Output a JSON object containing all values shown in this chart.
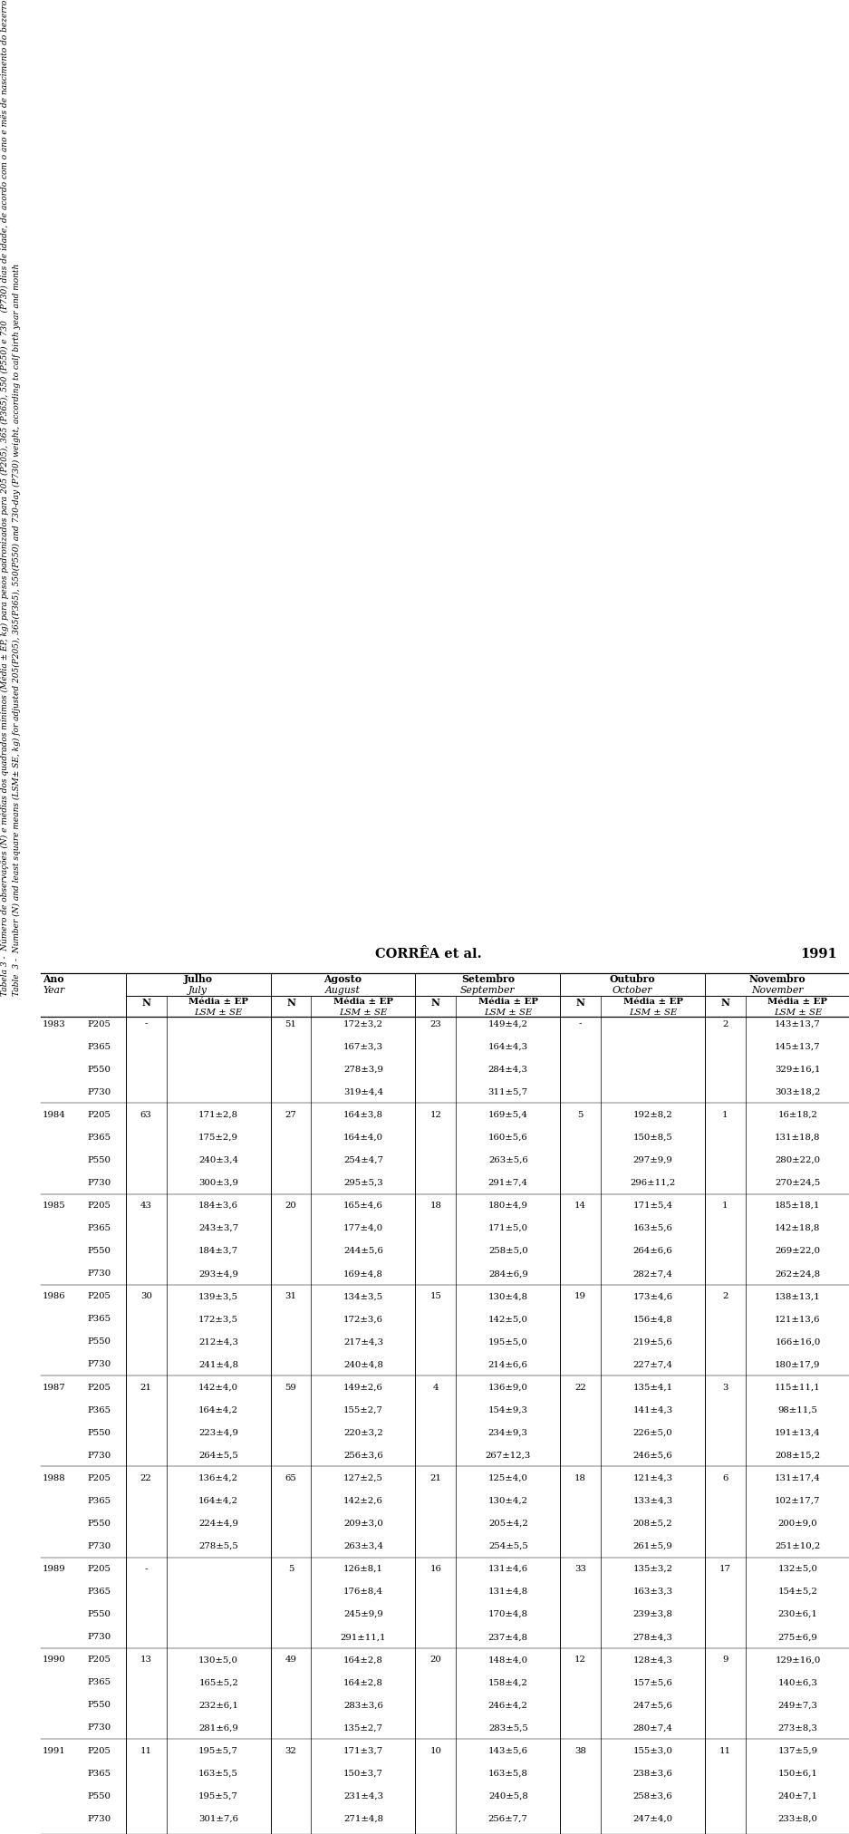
{
  "header_center": "CORRÊA et al.",
  "header_year": "1991",
  "title_pt": "Tabela 3 -  Número de observações (N) e médias dos quadrados mínimos (Média ± EP, kg) para pesos padronizados para 205 (P205), 365 (P365), 550 (P550) e 730",
  "title_pt2": "(P730) dias de idade, de acordo com o ano e mês de nascimento do bezerro",
  "title_en": "Table  3 -  Number (N) and least square means (LSM± SE, kg) for adjusted 205(P205), 365(P365), 550(P550) and 730-day (P730) weight, according to calf birth year and month",
  "rotated_label": "ano e mês de nascimento do bezerro",
  "month_names_pt": [
    "Julho",
    "Agosto",
    "Setembro",
    "Outubro",
    "Novembro"
  ],
  "month_names_en": [
    "July",
    "August",
    "September",
    "October",
    "November"
  ],
  "rows": [
    [
      "1983",
      "P205",
      "-",
      ".",
      "51",
      "172±3,2",
      "23",
      "149±4,2",
      "-",
      ".",
      "2",
      "143±13,7"
    ],
    [
      "",
      "P365",
      "",
      ".",
      "",
      "167±3,3",
      "",
      "164±4,3",
      "",
      ".",
      "",
      "145±13,7"
    ],
    [
      "",
      "P550",
      "",
      ".",
      "",
      "278±3,9",
      "",
      "284±4,3",
      "",
      ".",
      "",
      "329±16,1"
    ],
    [
      "",
      "P730",
      "",
      ".",
      "",
      "319±4,4",
      "",
      "311±5,7",
      "",
      ".",
      "",
      "303±18,2"
    ],
    [
      "1984",
      "P205",
      "63",
      "171±2,8",
      "27",
      "164±3,8",
      "12",
      "169±5,4",
      "5",
      "192±8,2",
      "1",
      "16±18,2"
    ],
    [
      "",
      "P365",
      "",
      "175±2,9",
      "",
      "164±4,0",
      "",
      "160±5,6",
      "",
      "150±8,5",
      "",
      "131±18,8"
    ],
    [
      "",
      "P550",
      "",
      "240±3,4",
      "",
      "254±4,7",
      "",
      "263±5,6",
      "",
      "297±9,9",
      "",
      "280±22,0"
    ],
    [
      "",
      "P730",
      "",
      "300±3,9",
      "",
      "295±5,3",
      "",
      "291±7,4",
      "",
      "296±11,2",
      "",
      "270±24,5"
    ],
    [
      "1985",
      "P205",
      "43",
      "184±3,6",
      "20",
      "165±4,6",
      "18",
      "180±4,9",
      "14",
      "171±5,4",
      "1",
      "185±18,1"
    ],
    [
      "",
      "P365",
      "",
      "243±3,7",
      "",
      "177±4,0",
      "",
      "171±5,0",
      "",
      "163±5,6",
      "",
      "142±18,8"
    ],
    [
      "",
      "P550",
      "",
      "184±3,7",
      "",
      "244±5,6",
      "",
      "258±5,0",
      "",
      "264±6,6",
      "",
      "269±22,0"
    ],
    [
      "",
      "P730",
      "",
      "293±4,9",
      "",
      "169±4,8",
      "",
      "284±6,9",
      "",
      "282±7,4",
      "",
      "262±24,8"
    ],
    [
      "1986",
      "P205",
      "30",
      "139±3,5",
      "31",
      "134±3,5",
      "15",
      "130±4,8",
      "19",
      "173±4,6",
      "2",
      "138±13,1"
    ],
    [
      "",
      "P365",
      "",
      "172±3,5",
      "",
      "172±3,6",
      "",
      "142±5,0",
      "",
      "156±4,8",
      "",
      "121±13,6"
    ],
    [
      "",
      "P550",
      "",
      "212±4,3",
      "",
      "217±4,3",
      "",
      "195±5,0",
      "",
      "219±5,6",
      "",
      "166±16,0"
    ],
    [
      "",
      "P730",
      "",
      "241±4,8",
      "",
      "240±4,8",
      "",
      "214±6,6",
      "",
      "227±7,4",
      "",
      "180±17,9"
    ],
    [
      "1987",
      "P205",
      "21",
      "142±4,0",
      "59",
      "149±2,6",
      "4",
      "136±9,0",
      "22",
      "135±4,1",
      "3",
      "115±11,1"
    ],
    [
      "",
      "P365",
      "",
      "164±4,2",
      "",
      "155±2,7",
      "",
      "154±9,3",
      "",
      "141±4,3",
      "",
      "98±11,5"
    ],
    [
      "",
      "P550",
      "",
      "223±4,9",
      "",
      "220±3,2",
      "",
      "234±9,3",
      "",
      "226±5,0",
      "",
      "191±13,4"
    ],
    [
      "",
      "P730",
      "",
      "264±5,5",
      "",
      "256±3,6",
      "",
      "267±12,3",
      "",
      "246±5,6",
      "",
      "208±15,2"
    ],
    [
      "1988",
      "P205",
      "22",
      "136±4,2",
      "65",
      "127±2,5",
      "21",
      "125±4,0",
      "18",
      "121±4,3",
      "6",
      "131±17,4"
    ],
    [
      "",
      "P365",
      "",
      "164±4,2",
      "",
      "142±2,6",
      "",
      "130±4,2",
      "",
      "133±4,3",
      "",
      "102±17,7"
    ],
    [
      "",
      "P550",
      "",
      "224±4,9",
      "",
      "209±3,0",
      "",
      "205±4,2",
      "",
      "208±5,2",
      "",
      "200±9,0"
    ],
    [
      "",
      "P730",
      "",
      "278±5,5",
      "",
      "263±3,4",
      "",
      "254±5,5",
      "",
      "261±5,9",
      "",
      "251±10,2"
    ],
    [
      "1989",
      "P205",
      "-",
      ".",
      "5",
      "126±8,1",
      "16",
      "131±4,6",
      "33",
      "135±3,2",
      "17",
      "132±5,0"
    ],
    [
      "",
      "P365",
      "",
      ".",
      "",
      "176±8,4",
      "",
      "131±4,8",
      "",
      "163±3,3",
      "",
      "154±5,2"
    ],
    [
      "",
      "P550",
      "",
      ".",
      "",
      "245±9,9",
      "",
      "170±4,8",
      "",
      "239±3,8",
      "",
      "230±6,1"
    ],
    [
      "",
      "P730",
      "",
      ".",
      "",
      "291±11,1",
      "",
      "237±4,8",
      "",
      "278±4,3",
      "",
      "275±6,9"
    ],
    [
      "1990",
      "P205",
      "13",
      "130±5,0",
      "49",
      "164±2,8",
      "20",
      "148±4,0",
      "12",
      "128±4,3",
      "9",
      "129±16,0"
    ],
    [
      "",
      "P365",
      "",
      "165±5,2",
      "",
      "164±2,8",
      "",
      "158±4,2",
      "",
      "157±5,6",
      "",
      "140±6,3"
    ],
    [
      "",
      "P550",
      "",
      "232±6,1",
      "",
      "283±3,6",
      "",
      "246±4,2",
      "",
      "247±5,6",
      "",
      "249±7,3"
    ],
    [
      "",
      "P730",
      "",
      "281±6,9",
      "",
      "135±2,7",
      "",
      "283±5,5",
      "",
      "280±7,4",
      "",
      "273±8,3"
    ],
    [
      "1991",
      "P205",
      "11",
      "195±5,7",
      "32",
      "171±3,7",
      "10",
      "143±5,6",
      "38",
      "155±3,0",
      "11",
      "137±5,9"
    ],
    [
      "",
      "P365",
      "",
      "163±5,5",
      "",
      "150±3,7",
      "",
      "163±5,8",
      "",
      "238±3,6",
      "",
      "150±6,1"
    ],
    [
      "",
      "P550",
      "",
      "195±5,7",
      "",
      "231±4,3",
      "",
      "240±5,8",
      "",
      "258±3,6",
      "",
      "240±7,1"
    ],
    [
      "",
      "P730",
      "",
      "301±7,6",
      "",
      "271±4,8",
      "",
      "256±7,7",
      "",
      "247±4,0",
      "",
      "233±8,0"
    ]
  ]
}
